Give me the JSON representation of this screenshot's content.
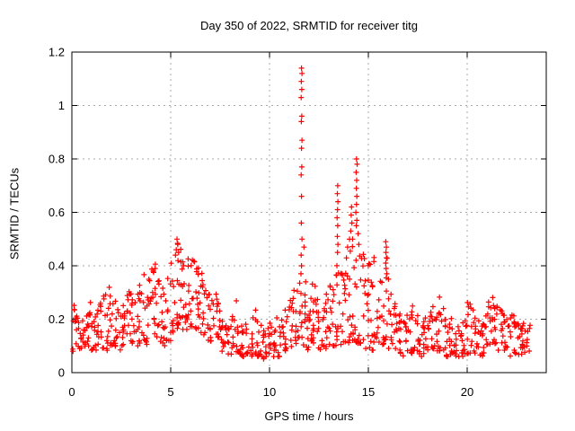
{
  "chart_data": {
    "type": "scatter",
    "title": "Day 350 of 2022, SRMTID for receiver titg",
    "xlabel": "GPS time / hours",
    "ylabel": "SRMTID / TECUs",
    "xlim": [
      0,
      24
    ],
    "ylim": [
      0,
      1.2
    ],
    "grid": true,
    "legend": "none",
    "marker": "plus",
    "colors": {
      "marker": "#ff0000",
      "grid": "#a8a8a8",
      "frame": "#000000",
      "text": "#000000",
      "background": "#ffffff"
    },
    "xticks": [
      {
        "v": 0,
        "label": "0"
      },
      {
        "v": 5,
        "label": "5"
      },
      {
        "v": 10,
        "label": "10"
      },
      {
        "v": 15,
        "label": "15"
      },
      {
        "v": 20,
        "label": "20"
      }
    ],
    "yticks": [
      {
        "v": 0,
        "label": "0"
      },
      {
        "v": 0.2,
        "label": "0.2"
      },
      {
        "v": 0.4,
        "label": "0.4"
      },
      {
        "v": 0.6,
        "label": "0.6"
      },
      {
        "v": 0.8,
        "label": "0.8"
      },
      {
        "v": 1,
        "label": "1"
      },
      {
        "v": 1.2,
        "label": "1.2"
      }
    ],
    "envelope_columns_comment": "dense scatter band: [x_center_hours, y_min_TECU, y_max_TECU, n_points] per 0.2 h bin",
    "columns": [
      [
        0.1,
        0.08,
        0.26,
        9
      ],
      [
        0.3,
        0.09,
        0.22,
        9
      ],
      [
        0.5,
        0.08,
        0.2,
        8
      ],
      [
        0.7,
        0.09,
        0.22,
        8
      ],
      [
        0.9,
        0.1,
        0.27,
        9
      ],
      [
        1.1,
        0.08,
        0.2,
        8
      ],
      [
        1.3,
        0.08,
        0.24,
        9
      ],
      [
        1.5,
        0.09,
        0.26,
        8
      ],
      [
        1.7,
        0.08,
        0.3,
        9
      ],
      [
        1.9,
        0.1,
        0.33,
        9
      ],
      [
        2.1,
        0.1,
        0.28,
        9
      ],
      [
        2.3,
        0.09,
        0.24,
        8
      ],
      [
        2.5,
        0.08,
        0.22,
        8
      ],
      [
        2.7,
        0.1,
        0.26,
        9
      ],
      [
        2.9,
        0.1,
        0.31,
        9
      ],
      [
        3.1,
        0.11,
        0.28,
        9
      ],
      [
        3.3,
        0.1,
        0.3,
        8
      ],
      [
        3.5,
        0.11,
        0.34,
        9
      ],
      [
        3.7,
        0.1,
        0.38,
        9
      ],
      [
        3.9,
        0.12,
        0.36,
        9
      ],
      [
        4.1,
        0.12,
        0.4,
        9
      ],
      [
        4.3,
        0.13,
        0.42,
        9
      ],
      [
        4.5,
        0.11,
        0.34,
        8
      ],
      [
        4.7,
        0.1,
        0.3,
        8
      ],
      [
        4.9,
        0.12,
        0.36,
        9
      ],
      [
        5.1,
        0.13,
        0.42,
        9
      ],
      [
        5.3,
        0.15,
        0.5,
        10
      ],
      [
        5.5,
        0.16,
        0.47,
        10
      ],
      [
        5.7,
        0.15,
        0.42,
        9
      ],
      [
        5.9,
        0.16,
        0.44,
        9
      ],
      [
        6.1,
        0.17,
        0.44,
        10
      ],
      [
        6.3,
        0.16,
        0.4,
        10
      ],
      [
        6.5,
        0.15,
        0.38,
        9
      ],
      [
        6.7,
        0.14,
        0.34,
        9
      ],
      [
        6.9,
        0.12,
        0.3,
        9
      ],
      [
        7.1,
        0.11,
        0.28,
        8
      ],
      [
        7.3,
        0.1,
        0.3,
        8
      ],
      [
        7.5,
        0.09,
        0.24,
        8
      ],
      [
        7.7,
        0.08,
        0.2,
        8
      ],
      [
        7.9,
        0.07,
        0.18,
        8
      ],
      [
        8.1,
        0.06,
        0.22,
        8
      ],
      [
        8.3,
        0.07,
        0.28,
        8
      ],
      [
        8.5,
        0.06,
        0.18,
        8
      ],
      [
        8.7,
        0.06,
        0.16,
        8
      ],
      [
        8.9,
        0.07,
        0.19,
        8
      ],
      [
        9.1,
        0.06,
        0.21,
        8
      ],
      [
        9.3,
        0.07,
        0.24,
        8
      ],
      [
        9.5,
        0.06,
        0.18,
        8
      ],
      [
        9.7,
        0.05,
        0.16,
        8
      ],
      [
        9.9,
        0.06,
        0.17,
        8
      ],
      [
        10.1,
        0.06,
        0.19,
        8
      ],
      [
        10.3,
        0.07,
        0.21,
        8
      ],
      [
        10.5,
        0.06,
        0.18,
        8
      ],
      [
        10.7,
        0.07,
        0.2,
        8
      ],
      [
        10.9,
        0.08,
        0.24,
        8
      ],
      [
        11.1,
        0.08,
        0.28,
        9
      ],
      [
        11.3,
        0.1,
        0.32,
        9
      ],
      [
        11.5,
        0.12,
        0.35,
        9
      ],
      [
        11.7,
        0.1,
        0.3,
        9
      ],
      [
        11.9,
        0.08,
        0.36,
        10
      ],
      [
        12.1,
        0.09,
        0.34,
        9
      ],
      [
        12.3,
        0.1,
        0.33,
        9
      ],
      [
        12.5,
        0.08,
        0.28,
        8
      ],
      [
        12.7,
        0.08,
        0.24,
        8
      ],
      [
        12.9,
        0.09,
        0.3,
        9
      ],
      [
        13.1,
        0.1,
        0.34,
        9
      ],
      [
        13.3,
        0.1,
        0.38,
        9
      ],
      [
        13.5,
        0.11,
        0.42,
        9
      ],
      [
        13.7,
        0.1,
        0.38,
        9
      ],
      [
        13.9,
        0.11,
        0.44,
        9
      ],
      [
        14.1,
        0.12,
        0.52,
        10
      ],
      [
        14.3,
        0.12,
        0.5,
        10
      ],
      [
        14.5,
        0.11,
        0.46,
        9
      ],
      [
        14.7,
        0.1,
        0.45,
        9
      ],
      [
        14.9,
        0.09,
        0.36,
        9
      ],
      [
        15.1,
        0.08,
        0.42,
        9
      ],
      [
        15.3,
        0.08,
        0.45,
        9
      ],
      [
        15.5,
        0.08,
        0.28,
        8
      ],
      [
        15.7,
        0.1,
        0.35,
        9
      ],
      [
        15.9,
        0.12,
        0.44,
        9
      ],
      [
        16.1,
        0.09,
        0.3,
        8
      ],
      [
        16.3,
        0.08,
        0.26,
        8
      ],
      [
        16.5,
        0.07,
        0.22,
        8
      ],
      [
        16.7,
        0.06,
        0.2,
        8
      ],
      [
        16.9,
        0.07,
        0.22,
        8
      ],
      [
        17.1,
        0.07,
        0.24,
        8
      ],
      [
        17.3,
        0.08,
        0.26,
        8
      ],
      [
        17.5,
        0.07,
        0.22,
        8
      ],
      [
        17.7,
        0.06,
        0.2,
        8
      ],
      [
        17.9,
        0.07,
        0.21,
        8
      ],
      [
        18.1,
        0.07,
        0.23,
        8
      ],
      [
        18.3,
        0.08,
        0.26,
        8
      ],
      [
        18.5,
        0.08,
        0.29,
        9
      ],
      [
        18.7,
        0.07,
        0.25,
        8
      ],
      [
        18.9,
        0.06,
        0.21,
        8
      ],
      [
        19.1,
        0.06,
        0.19,
        8
      ],
      [
        19.3,
        0.07,
        0.21,
        8
      ],
      [
        19.5,
        0.06,
        0.18,
        8
      ],
      [
        19.7,
        0.06,
        0.19,
        8
      ],
      [
        19.9,
        0.07,
        0.2,
        8
      ],
      [
        20.1,
        0.07,
        0.27,
        8
      ],
      [
        20.3,
        0.08,
        0.24,
        8
      ],
      [
        20.5,
        0.07,
        0.2,
        8
      ],
      [
        20.7,
        0.06,
        0.19,
        8
      ],
      [
        20.9,
        0.07,
        0.22,
        8
      ],
      [
        21.1,
        0.08,
        0.27,
        9
      ],
      [
        21.3,
        0.09,
        0.29,
        9
      ],
      [
        21.5,
        0.08,
        0.26,
        8
      ],
      [
        21.7,
        0.08,
        0.24,
        8
      ],
      [
        21.9,
        0.07,
        0.22,
        8
      ],
      [
        22.1,
        0.06,
        0.21,
        8
      ],
      [
        22.3,
        0.07,
        0.22,
        8
      ],
      [
        22.5,
        0.06,
        0.19,
        8
      ],
      [
        22.7,
        0.05,
        0.17,
        8
      ],
      [
        22.9,
        0.07,
        0.19,
        8
      ],
      [
        23.1,
        0.08,
        0.18,
        7
      ]
    ],
    "feature_points_comment": "explicit prominent points/spike columns read from plot [x_hours, y_TECU]",
    "points": [
      [
        11.62,
        1.14
      ],
      [
        11.64,
        1.12
      ],
      [
        11.61,
        1.09
      ],
      [
        11.63,
        1.06
      ],
      [
        11.6,
        1.03
      ],
      [
        11.63,
        0.96
      ],
      [
        11.61,
        0.94
      ],
      [
        11.64,
        0.87
      ],
      [
        11.62,
        0.84
      ],
      [
        11.63,
        0.77
      ],
      [
        11.6,
        0.74
      ],
      [
        11.62,
        0.66
      ],
      [
        11.61,
        0.56
      ],
      [
        11.64,
        0.5
      ],
      [
        11.74,
        0.47
      ],
      [
        11.6,
        0.44
      ],
      [
        11.62,
        0.4
      ],
      [
        11.59,
        0.37
      ],
      [
        13.45,
        0.7
      ],
      [
        13.43,
        0.67
      ],
      [
        13.46,
        0.64
      ],
      [
        13.44,
        0.61
      ],
      [
        13.42,
        0.58
      ],
      [
        13.45,
        0.55
      ],
      [
        13.43,
        0.51
      ],
      [
        13.46,
        0.48
      ],
      [
        13.44,
        0.45
      ],
      [
        14.4,
        0.8
      ],
      [
        14.43,
        0.78
      ],
      [
        14.38,
        0.75
      ],
      [
        14.41,
        0.72
      ],
      [
        14.39,
        0.69
      ],
      [
        14.42,
        0.66
      ],
      [
        14.4,
        0.63
      ],
      [
        14.37,
        0.6
      ],
      [
        14.42,
        0.57
      ],
      [
        14.39,
        0.55
      ],
      [
        14.15,
        0.62
      ],
      [
        14.13,
        0.59
      ],
      [
        14.17,
        0.56
      ],
      [
        14.11,
        0.53
      ],
      [
        14.2,
        0.5
      ],
      [
        14.48,
        0.52
      ],
      [
        14.52,
        0.48
      ],
      [
        13.95,
        0.47
      ],
      [
        15.88,
        0.49
      ],
      [
        15.91,
        0.47
      ],
      [
        15.89,
        0.45
      ],
      [
        15.92,
        0.43
      ],
      [
        15.88,
        0.41
      ],
      [
        15.9,
        0.39
      ],
      [
        15.93,
        0.37
      ],
      [
        16.02,
        0.35
      ],
      [
        5.32,
        0.5
      ],
      [
        5.36,
        0.48
      ],
      [
        5.28,
        0.46
      ],
      [
        5.4,
        0.45
      ],
      [
        5.24,
        0.44
      ]
    ]
  }
}
